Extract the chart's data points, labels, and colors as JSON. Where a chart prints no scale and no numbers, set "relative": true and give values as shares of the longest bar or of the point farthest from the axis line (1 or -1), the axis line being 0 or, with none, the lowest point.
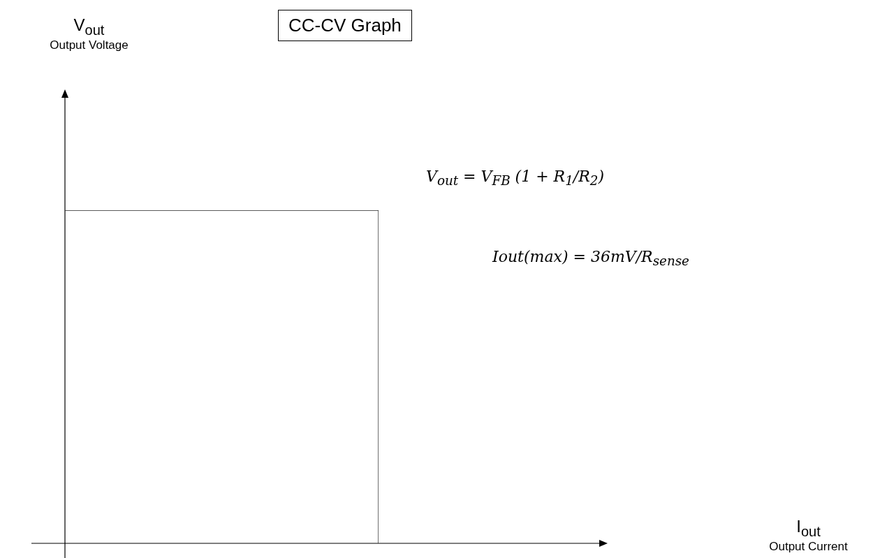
{
  "chart_data": {
    "type": "step",
    "relative": true,
    "title": "CC-CV Graph",
    "categories": [
      null,
      null
    ],
    "series": [
      {
        "color": "#262626",
        "values": [
          1,
          0
        ]
      }
    ],
    "annotations": [
      "V$_{out}$ = V$_{FB}$ (1 + R$_{1}$/R$_{2}$)",
      "Iout(max) = 36mV/R$_{sense}$",
      "V$_{out}$\nOutput Voltage",
      "I$_{out}$\nOutput Current"
    ]
  }
}
